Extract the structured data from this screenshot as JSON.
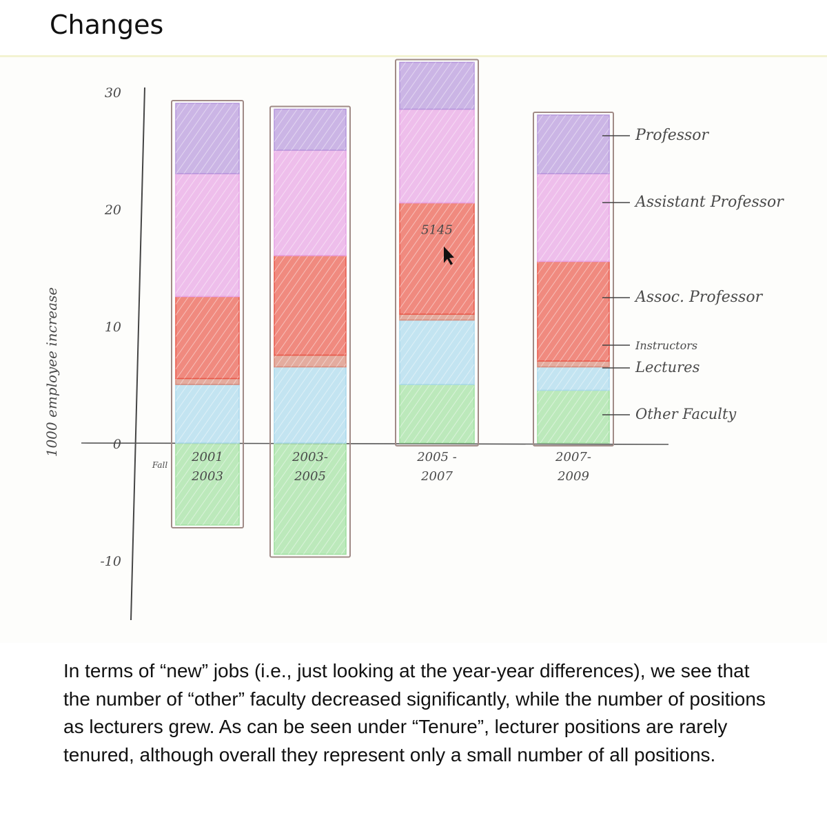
{
  "page": {
    "title": "Changes",
    "caption": "In terms of “new” jobs (i.e., just looking at the year-year differences), we see that the number of “other” faculty decreased significantly, while the number of positions as lecturers grew. As can be seen under “Tenure”, lecturer positions are rarely tenured, although overall they represent only a small number of all positions."
  },
  "chart_data": {
    "type": "bar",
    "stacked": true,
    "title": "",
    "ylabel": "1000 employee increase",
    "ylim": [
      -12,
      30
    ],
    "yticks": [
      30,
      20,
      10,
      0,
      -10
    ],
    "ytick_labels": [
      "30",
      "20",
      "10",
      "0",
      "-10"
    ],
    "x_prefix_label": "Fall",
    "categories": [
      "2001-2003",
      "2003-2005",
      "2005-2007",
      "2007-2009"
    ],
    "category_labels": [
      [
        "2001",
        "2003"
      ],
      [
        "2003-",
        "2005"
      ],
      [
        "2005 -",
        "2007"
      ],
      [
        "2007-",
        "2009"
      ]
    ],
    "series": [
      {
        "name": "Other Faculty",
        "color": "#9fe0a0",
        "values": [
          -7,
          -9.5,
          5,
          4.5
        ]
      },
      {
        "name": "Lectures",
        "color": "#aad8ec",
        "values": [
          5,
          6.5,
          5.5,
          2
        ]
      },
      {
        "name": "Instructors",
        "color": "#d98978",
        "values": [
          0.5,
          1,
          0.5,
          0.5
        ]
      },
      {
        "name": "Assoc. Professor",
        "color": "#e9584a",
        "values": [
          7,
          8.5,
          9.5,
          8.5
        ]
      },
      {
        "name": "Assistant Professor",
        "color": "#e7a2e4",
        "values": [
          10.5,
          9,
          8,
          7.5
        ]
      },
      {
        "name": "Professor",
        "color": "#b596dc",
        "values": [
          6,
          3.5,
          4,
          5
        ]
      }
    ],
    "annotations": [
      {
        "category": "2005-2007",
        "series": "Assoc. Professor",
        "text": "5145"
      }
    ],
    "legend": "right"
  }
}
